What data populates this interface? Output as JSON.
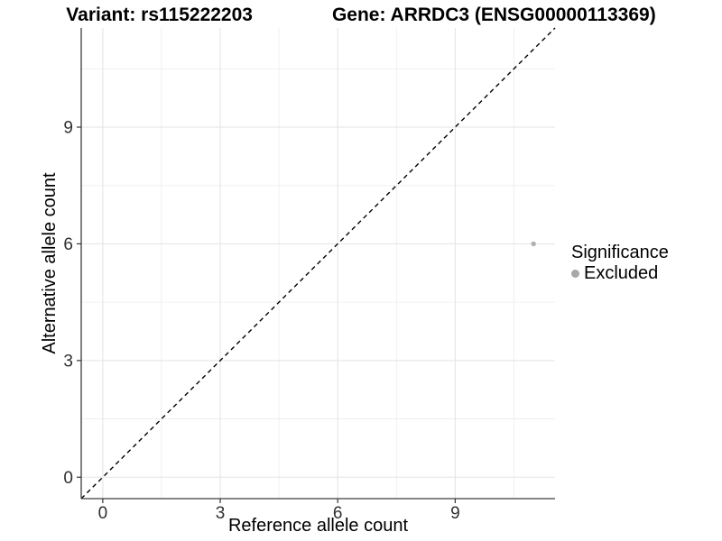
{
  "title": {
    "variant": "Variant: rs115222203",
    "gene": "Gene: ARRDC3 (ENSG00000113369)"
  },
  "chart_data": {
    "type": "scatter",
    "title": "Variant: rs115222203    Gene: ARRDC3 (ENSG00000113369)",
    "xlabel": "Reference allele count",
    "ylabel": "Alternative allele count",
    "xlim": [
      -0.55,
      11.55
    ],
    "ylim": [
      -0.55,
      11.55
    ],
    "xticks": [
      0,
      3,
      6,
      9
    ],
    "yticks": [
      0,
      3,
      6,
      9
    ],
    "minor_interval": 1.5,
    "grid": true,
    "legend_position": "right",
    "reference_line": {
      "slope": 1,
      "intercept": 0,
      "style": "dashed",
      "color": "#000000"
    },
    "series": [
      {
        "name": "Excluded",
        "color": "#b0b0b0",
        "points": [
          {
            "x": 11,
            "y": 6
          }
        ]
      }
    ],
    "legend": {
      "title": "Significance",
      "entries": [
        {
          "label": "Excluded",
          "color": "#a8a8a8"
        }
      ]
    }
  },
  "colors": {
    "background": "#ffffff",
    "axis_line": "#3c3c3c",
    "tick_mark": "#333333",
    "tick_label": "#303030",
    "grid_major": "#e3e3e3",
    "grid_minor": "#f0f0f0",
    "point": "#b0b0b0",
    "legend_dot": "#a8a8a8",
    "reference_line": "#000000"
  }
}
